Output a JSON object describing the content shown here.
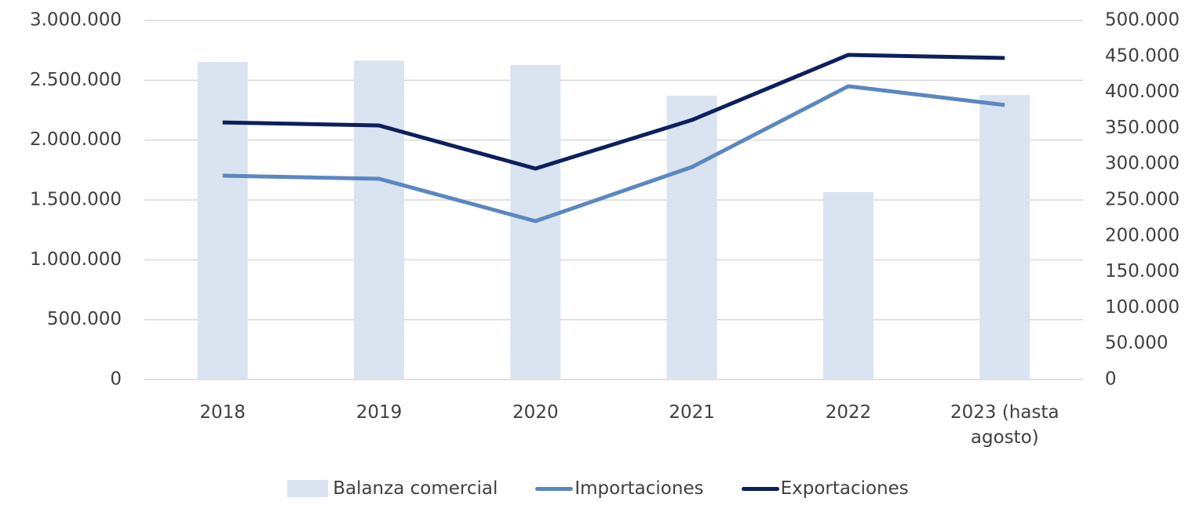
{
  "chart_data": {
    "type": "bar_line",
    "categories": [
      "2018",
      "2019",
      "2020",
      "2021",
      "2022",
      "2023 (hasta agosto)"
    ],
    "series": [
      {
        "name": "Balanza comercial",
        "type": "bar",
        "axis": "y2",
        "color": "#dae3f0",
        "values": [
          442000,
          444000,
          438000,
          395000,
          261000,
          396000
        ]
      },
      {
        "name": "Importaciones",
        "type": "line",
        "color": "#5b87c0",
        "values": [
          1703000,
          1677000,
          1323000,
          1775000,
          2450000,
          2293000
        ]
      },
      {
        "name": "Exportaciones",
        "type": "line",
        "color": "#0d1f5c",
        "values": [
          2148000,
          2122000,
          1762000,
          2168000,
          2712000,
          2686000
        ]
      }
    ],
    "ylim": [
      0,
      3000000
    ],
    "yticks": [
      0,
      {
        "value": 500000,
        "label": "500.000"
      },
      {
        "value": 1000000,
        "label": "1.000.000"
      },
      {
        "value": 1500000,
        "label": "1.500.000"
      },
      {
        "value": 2000000,
        "label": "2.000.000"
      },
      {
        "value": 2500000,
        "label": "2.500.000"
      },
      {
        "value": 3000000,
        "label": "3.000.000"
      }
    ],
    "y2lim": [
      0,
      500000
    ],
    "y2ticks": [
      0,
      {
        "value": 50000,
        "label": "50.000"
      },
      {
        "value": 100000,
        "label": "100.000"
      },
      {
        "value": 150000,
        "label": "150.000"
      },
      {
        "value": 200000,
        "label": "200.000"
      },
      {
        "value": 250000,
        "label": "250.000"
      },
      {
        "value": 300000,
        "label": "300.000"
      },
      {
        "value": 350000,
        "label": "350.000"
      },
      {
        "value": 400000,
        "label": "400.000"
      },
      {
        "value": 450000,
        "label": "450.000"
      },
      {
        "value": 500000,
        "label": "500.000"
      }
    ],
    "grid": true,
    "legend": "bottom"
  }
}
